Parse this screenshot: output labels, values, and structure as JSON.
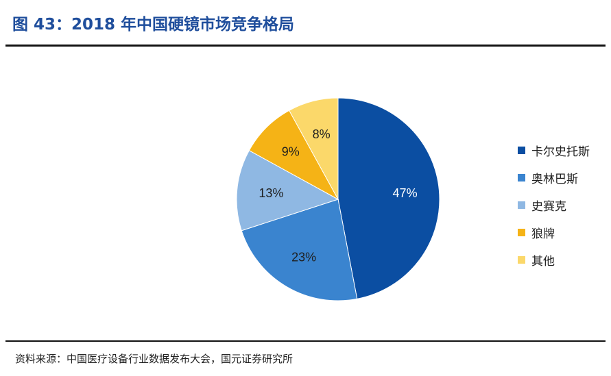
{
  "figure": {
    "title": "图 43：2018 年中国硬镜市场竞争格局",
    "source": "资料来源：中国医疗设备行业数据发布大会，国元证券研究所",
    "title_color": "#1f4e9c"
  },
  "chart_data": {
    "type": "pie",
    "title": "",
    "legend_position": "right",
    "start_angle_deg": 0,
    "direction": "clockwise",
    "slices": [
      {
        "name": "卡尔史托斯",
        "value": 47,
        "label": "47%",
        "color": "#0b4ea2",
        "label_color": "#ffffff"
      },
      {
        "name": "奥林巴斯",
        "value": 23,
        "label": "23%",
        "color": "#3a84cf",
        "label_color": "#1f1f1f"
      },
      {
        "name": "史赛克",
        "value": 13,
        "label": "13%",
        "color": "#8fb8e3",
        "label_color": "#1f1f1f"
      },
      {
        "name": "狼牌",
        "value": 9,
        "label": "9%",
        "color": "#f5b316",
        "label_color": "#1f1f1f"
      },
      {
        "name": "其他",
        "value": 8,
        "label": "8%",
        "color": "#fbd86a",
        "label_color": "#1f1f1f"
      }
    ]
  }
}
